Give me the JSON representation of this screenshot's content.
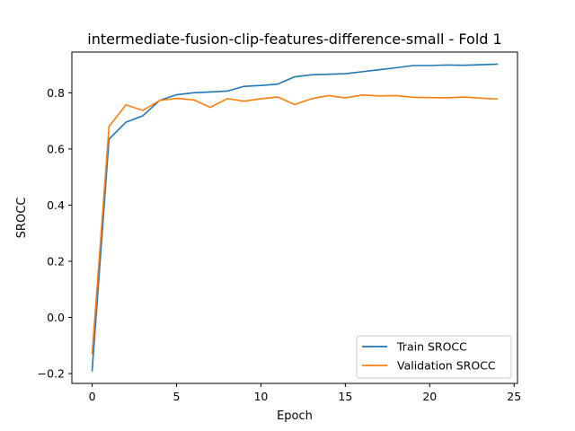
{
  "chart_data": {
    "type": "line",
    "title": "intermediate-fusion-clip-features-difference-small - Fold 1",
    "xlabel": "Epoch",
    "ylabel": "SROCC",
    "xlim": [
      -1.2,
      25.2
    ],
    "ylim": [
      -0.235,
      0.945
    ],
    "xticks": [
      0,
      5,
      10,
      15,
      20,
      25
    ],
    "yticks": [
      -0.2,
      0.0,
      0.2,
      0.4,
      0.6,
      0.8
    ],
    "xtick_labels": [
      "0",
      "5",
      "10",
      "15",
      "20",
      "25"
    ],
    "ytick_labels": [
      "−0.2",
      "0.0",
      "0.2",
      "0.4",
      "0.6",
      "0.8"
    ],
    "grid": false,
    "legend_position": "lower-right",
    "x": [
      0,
      1,
      2,
      3,
      4,
      5,
      6,
      7,
      8,
      9,
      10,
      11,
      12,
      13,
      14,
      15,
      16,
      17,
      18,
      19,
      20,
      21,
      22,
      23,
      24
    ],
    "series": [
      {
        "name": "Train SROCC",
        "color": "#1f77b4",
        "values": [
          -0.19,
          0.635,
          0.695,
          0.718,
          0.773,
          0.793,
          0.8,
          0.803,
          0.806,
          0.823,
          0.826,
          0.831,
          0.857,
          0.864,
          0.866,
          0.868,
          0.875,
          0.882,
          0.889,
          0.897,
          0.897,
          0.899,
          0.898,
          0.9,
          0.902
        ]
      },
      {
        "name": "Validation SROCC",
        "color": "#ff7f0e",
        "values": [
          -0.13,
          0.68,
          0.757,
          0.737,
          0.773,
          0.78,
          0.775,
          0.748,
          0.779,
          0.77,
          0.779,
          0.785,
          0.758,
          0.779,
          0.79,
          0.782,
          0.792,
          0.789,
          0.79,
          0.784,
          0.783,
          0.782,
          0.785,
          0.781,
          0.778
        ]
      }
    ]
  }
}
